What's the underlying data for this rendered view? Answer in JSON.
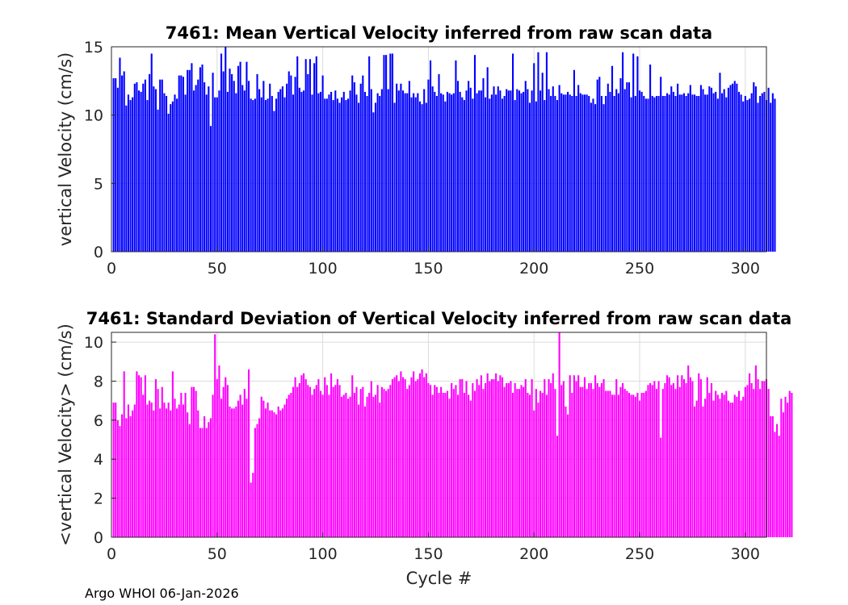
{
  "footer": "Argo WHOI 06-Jan-2026",
  "chart_data": [
    {
      "type": "bar",
      "title": "7461: Mean Vertical Velocity inferred from raw scan data",
      "xlabel": "",
      "ylabel": "vertical Velocity (cm/s)",
      "xlim": [
        0,
        310
      ],
      "ylim": [
        0,
        15
      ],
      "xticks": [
        0,
        50,
        100,
        150,
        200,
        250,
        300
      ],
      "yticks": [
        0,
        5,
        10,
        15
      ],
      "color": "#0000ff",
      "x_start": 1,
      "values": [
        12.7,
        12.7,
        12.0,
        14.2,
        12.9,
        13.2,
        10.7,
        11.5,
        11.1,
        11.3,
        12.3,
        12.4,
        11.8,
        11.7,
        12.3,
        12.6,
        11.1,
        13.0,
        14.5,
        12.1,
        11.9,
        10.4,
        12.6,
        12.6,
        11.6,
        11.4,
        10.1,
        10.8,
        11.0,
        11.5,
        11.2,
        12.9,
        12.9,
        12.8,
        11.5,
        13.3,
        13.3,
        13.8,
        11.8,
        12.2,
        12.6,
        13.5,
        13.7,
        12.4,
        11.5,
        12.1,
        9.2,
        13.1,
        11.3,
        11.3,
        11.8,
        14.5,
        13.2,
        15.0,
        11.7,
        13.4,
        13.0,
        12.5,
        11.6,
        13.6,
        13.9,
        12.2,
        11.8,
        13.9,
        12.5,
        11.2,
        11.1,
        11.2,
        13.0,
        11.9,
        11.3,
        12.5,
        11.1,
        11.2,
        12.3,
        11.4,
        10.3,
        11.2,
        11.7,
        11.9,
        12.1,
        11.3,
        12.3,
        13.2,
        12.9,
        11.5,
        12.8,
        14.3,
        12.0,
        11.7,
        11.8,
        14.1,
        13.0,
        14.1,
        11.5,
        13.8,
        14.3,
        11.6,
        11.7,
        12.9,
        11.2,
        11.2,
        11.5,
        11.7,
        11.1,
        11.8,
        11.2,
        10.9,
        11.3,
        11.7,
        11.1,
        11.2,
        11.8,
        12.9,
        12.4,
        11.5,
        10.9,
        12.3,
        12.9,
        11.7,
        11.4,
        14.3,
        11.9,
        10.2,
        10.9,
        11.6,
        11.4,
        11.9,
        14.4,
        14.4,
        11.9,
        14.5,
        14.5,
        10.9,
        12.3,
        11.8,
        12.3,
        11.8,
        11.6,
        11.6,
        12.5,
        11.3,
        11.6,
        11.3,
        11.6,
        11.0,
        10.8,
        11.9,
        10.9,
        12.6,
        14.0,
        12.1,
        11.7,
        11.4,
        13.0,
        11.6,
        11.5,
        11.0,
        11.7,
        11.6,
        11.5,
        11.6,
        14.0,
        12.5,
        11.7,
        11.3,
        11.1,
        11.8,
        12.5,
        12.0,
        11.2,
        14.4,
        11.6,
        11.8,
        11.8,
        12.7,
        11.3,
        13.5,
        11.2,
        11.5,
        12.1,
        11.5,
        12.1,
        11.8,
        11.2,
        11.4,
        11.9,
        11.8,
        11.8,
        14.5,
        11.1,
        11.9,
        11.8,
        11.6,
        11.7,
        12.5,
        11.9,
        10.9,
        11.8,
        13.8,
        11.0,
        14.6,
        11.8,
        13.1,
        11.1,
        14.6,
        11.9,
        11.4,
        12.1,
        11.4,
        11.1,
        12.2,
        11.6,
        11.5,
        11.5,
        11.7,
        11.5,
        11.4,
        13.3,
        11.4,
        12.2,
        11.6,
        11.5,
        11.5,
        11.5,
        11.4,
        10.9,
        11.2,
        10.8,
        12.6,
        12.8,
        11.4,
        10.8,
        11.4,
        12.3,
        11.7,
        13.6,
        11.4,
        11.9,
        11.6,
        12.7,
        14.6,
        11.9,
        12.4,
        12.4,
        11.3,
        14.5,
        11.4,
        14.3,
        11.8,
        11.7,
        11.4,
        11.2,
        11.2,
        13.7,
        11.4,
        11.3,
        11.4,
        11.4,
        12.8,
        11.4,
        11.4,
        11.6,
        11.5,
        12.1,
        11.7,
        11.4,
        12.3,
        11.5,
        11.5,
        11.6,
        11.4,
        11.6,
        12.2,
        11.5,
        11.5,
        11.4,
        11.4,
        12.2,
        11.9,
        11.5,
        11.5,
        12.1,
        12.0,
        11.6,
        11.7,
        11.2,
        13.1,
        11.6,
        11.9,
        11.3,
        12.0,
        12.2,
        12.3,
        12.5,
        12.3,
        11.7,
        11.5,
        11.0,
        11.4,
        11.1,
        11.2,
        11.6,
        12.4,
        12.1,
        10.9,
        11.4,
        11.6,
        11.7,
        11.1,
        12.0,
        10.9,
        11.6,
        11.2
      ]
    },
    {
      "type": "bar",
      "title": "7461: Standard Deviation of Vertical Velocity inferred from raw scan data",
      "xlabel": "Cycle #",
      "ylabel": "<vertical Velocity> (cm/s)",
      "xlim": [
        0,
        310
      ],
      "ylim": [
        0,
        10.5
      ],
      "xticks": [
        0,
        50,
        100,
        150,
        200,
        250,
        300
      ],
      "yticks": [
        0,
        2,
        4,
        6,
        8,
        10
      ],
      "color": "#ff00ff",
      "x_start": 1,
      "values": [
        6.9,
        6.9,
        6.0,
        5.7,
        6.3,
        8.5,
        6.1,
        6.8,
        6.2,
        6.5,
        6.8,
        8.5,
        8.3,
        8.2,
        7.3,
        8.3,
        6.8,
        7.0,
        6.9,
        6.5,
        8.1,
        7.6,
        6.6,
        7.7,
        6.9,
        6.6,
        6.9,
        6.5,
        8.5,
        7.1,
        6.6,
        6.8,
        7.4,
        6.8,
        7.4,
        6.4,
        5.8,
        7.7,
        7.7,
        7.5,
        6.5,
        5.6,
        5.6,
        6.2,
        5.6,
        5.9,
        6.1,
        7.3,
        10.4,
        8.1,
        8.8,
        7.1,
        7.7,
        8.2,
        7.8,
        6.7,
        6.6,
        6.6,
        6.7,
        7.0,
        7.3,
        6.8,
        7.6,
        7.1,
        8.6,
        2.8,
        3.3,
        5.6,
        5.8,
        6.1,
        7.2,
        7.0,
        6.6,
        6.9,
        6.5,
        6.5,
        6.4,
        6.3,
        6.7,
        6.5,
        6.6,
        6.8,
        7.1,
        7.3,
        7.4,
        7.7,
        8.2,
        7.7,
        7.9,
        8.3,
        8.4,
        8.1,
        7.8,
        7.7,
        7.3,
        7.6,
        7.8,
        8.1,
        7.5,
        7.3,
        8.2,
        7.8,
        7.3,
        8.4,
        7.7,
        7.8,
        8.1,
        7.8,
        7.2,
        7.3,
        7.4,
        7.1,
        7.2,
        8.3,
        7.4,
        7.7,
        6.8,
        7.6,
        7.7,
        6.7,
        7.2,
        7.4,
        8.0,
        7.2,
        7.3,
        7.8,
        6.9,
        7.7,
        7.6,
        7.5,
        7.6,
        7.8,
        8.1,
        8.2,
        8.3,
        8.0,
        8.5,
        8.2,
        8.1,
        7.6,
        7.8,
        8.2,
        8.5,
        8.0,
        8.1,
        8.4,
        8.6,
        8.2,
        8.4,
        7.9,
        7.8,
        7.3,
        7.8,
        7.7,
        7.4,
        7.7,
        7.4,
        7.4,
        7.5,
        7.1,
        7.9,
        7.6,
        7.8,
        7.3,
        8.1,
        8.1,
        7.4,
        8.0,
        7.3,
        7.0,
        7.9,
        7.5,
        8.1,
        7.8,
        8.3,
        7.6,
        7.9,
        8.4,
        8.0,
        8.1,
        8.1,
        8.4,
        8.0,
        8.3,
        8.2,
        7.7,
        7.9,
        7.9,
        8.0,
        7.4,
        7.9,
        7.6,
        7.6,
        7.8,
        7.7,
        8.1,
        7.4,
        7.3,
        8.1,
        6.5,
        7.6,
        6.9,
        7.5,
        7.4,
        8.1,
        7.3,
        8.1,
        7.9,
        8.4,
        7.6,
        5.2,
        10.5,
        7.8,
        8.0,
        6.7,
        6.3,
        8.3,
        7.4,
        8.3,
        8.0,
        8.3,
        7.7,
        7.7,
        8.2,
        7.6,
        7.9,
        7.9,
        7.6,
        8.3,
        7.9,
        7.7,
        7.9,
        8.1,
        7.5,
        7.5,
        7.5,
        7.3,
        7.3,
        8.1,
        7.3,
        7.7,
        7.9,
        7.6,
        7.5,
        7.4,
        7.3,
        7.3,
        7.2,
        7.4,
        7.0,
        7.4,
        7.4,
        7.5,
        7.8,
        7.9,
        7.8,
        8.0,
        7.6,
        8.0,
        5.1,
        7.6,
        7.9,
        8.3,
        8.2,
        7.8,
        7.9,
        7.6,
        8.3,
        7.7,
        8.3,
        8.1,
        7.9,
        8.8,
        8.2,
        8.0,
        6.7,
        7.0,
        8.4,
        8.1,
        6.7,
        7.1,
        8.2,
        7.4,
        7.9,
        7.0,
        7.5,
        7.3,
        7.1,
        7.4,
        7.3,
        7.5,
        7.0,
        6.9,
        6.9,
        7.3,
        7.2,
        7.5,
        7.0,
        7.2,
        7.7,
        7.8,
        8.4,
        7.9,
        7.6,
        8.8,
        8.1,
        7.6,
        8.0,
        8.0,
        8.1,
        7.6,
        6.2,
        6.2,
        5.4,
        5.8,
        5.2,
        7.1,
        6.4,
        7.2,
        6.9,
        7.5,
        7.4
      ]
    }
  ]
}
